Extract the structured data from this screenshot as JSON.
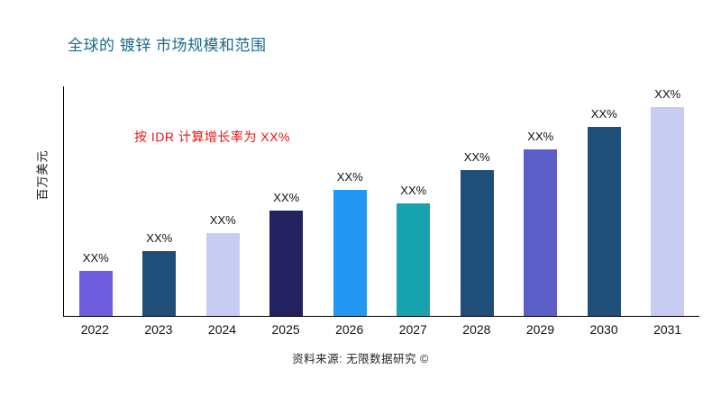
{
  "title": "全球的 镀锌 市场规模和范围",
  "y_axis_label": "百万美元",
  "growth_note": "按 IDR 计算增长率为 XX%",
  "source_note": "资料来源: 无限数据研究 ©",
  "colors": {
    "title": "#1a6b8a",
    "growth_note": "#ee1111",
    "axis": "#000000"
  },
  "chart_data": {
    "type": "bar",
    "title": "全球的 镀锌 市场规模和范围",
    "xlabel": "",
    "ylabel": "百万美元",
    "categories": [
      "2022",
      "2023",
      "2024",
      "2025",
      "2026",
      "2027",
      "2028",
      "2029",
      "2030",
      "2031"
    ],
    "values": [
      20,
      29,
      37,
      47,
      56,
      50,
      65,
      74,
      84,
      93
    ],
    "value_labels": [
      "XX%",
      "XX%",
      "XX%",
      "XX%",
      "XX%",
      "XX%",
      "XX%",
      "XX%",
      "XX%",
      "XX%"
    ],
    "bar_colors": [
      "#6f5de0",
      "#1f4e79",
      "#c9ccf2",
      "#23215f",
      "#2196f3",
      "#16a3ad",
      "#1f4e79",
      "#5b5fc7",
      "#1f4e79",
      "#c9ccf2"
    ],
    "annotation": "按 IDR 计算增长率为 XX%",
    "ylim": [
      0,
      100
    ],
    "grid": false,
    "legend": "none"
  }
}
